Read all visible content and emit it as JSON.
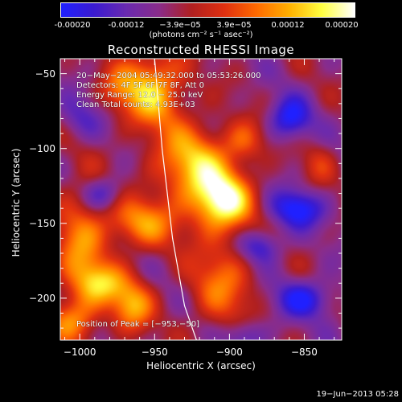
{
  "colorbar": {
    "ticks": [
      "-0.00020",
      "-0.00012",
      "−3.9e−05",
      "3.9e−05",
      "0.00012",
      "0.00020"
    ],
    "units": "(photons cm⁻² s⁻¹ asec⁻²)",
    "colors": [
      "#2020ff",
      "#3b1bd0",
      "#6a2ab0",
      "#8a2c8a",
      "#b02020",
      "#e03010",
      "#ff6a00",
      "#ffb000",
      "#ffff40",
      "#ffffff"
    ]
  },
  "annotations": {
    "line1": "20−May−2004 05:49:32.000 to 05:53:26.000",
    "line2": "Detectors: 4F 5F 6F 7F 8F, Att 0",
    "line3": "Energy Range: 12.0 − 25.0 keV",
    "line4": "Clean     Total counts: 4.93E+03",
    "peak": "Position of Peak = [−953,−50]"
  },
  "footer": "19−Jun−2013 05:28",
  "chart_data": {
    "type": "heatmap",
    "title": "Reconstructed RHESSI Image",
    "xlabel": "Heliocentric X (arcsec)",
    "ylabel": "Heliocentric Y (arcsec)",
    "xlim": [
      -1013,
      -825
    ],
    "ylim": [
      -228,
      -40
    ],
    "xticks": [
      -1000,
      -950,
      -900,
      -850
    ],
    "yticks": [
      -200,
      -150,
      -100,
      -50
    ],
    "xtick_labels": [
      "−1000",
      "−950",
      "−900",
      "−850"
    ],
    "ytick_labels": [
      "−200",
      "−150",
      "−100",
      "−50"
    ],
    "zlim": [
      -0.0002,
      0.0002
    ],
    "peak": [
      -953,
      -50
    ],
    "limb": [
      [
        -950,
        -40
      ],
      [
        -945,
        -100
      ],
      [
        -938,
        -160
      ],
      [
        -930,
        -205
      ],
      [
        -922,
        -228
      ]
    ],
    "sources": [
      {
        "x": -952,
        "y": -60,
        "sx": 15,
        "sy": 18,
        "a": 0.00016
      },
      {
        "x": -925,
        "y": -110,
        "sx": 18,
        "sy": 18,
        "a": 0.00015
      },
      {
        "x": -905,
        "y": -135,
        "sx": 14,
        "sy": 14,
        "a": 0.0002
      },
      {
        "x": -960,
        "y": -150,
        "sx": 18,
        "sy": 12,
        "a": 0.00012
      },
      {
        "x": -1000,
        "y": -165,
        "sx": 12,
        "sy": 30,
        "a": 0.00011
      },
      {
        "x": -985,
        "y": -190,
        "sx": 12,
        "sy": 10,
        "a": 0.00012
      },
      {
        "x": -965,
        "y": -205,
        "sx": 10,
        "sy": 12,
        "a": 0.00013
      },
      {
        "x": -1005,
        "y": -215,
        "sx": 12,
        "sy": 10,
        "a": 0.0001
      },
      {
        "x": -905,
        "y": -190,
        "sx": 15,
        "sy": 22,
        "a": 0.0001
      },
      {
        "x": -890,
        "y": -95,
        "sx": 10,
        "sy": 10,
        "a": 8e-05
      },
      {
        "x": -860,
        "y": -80,
        "sx": 10,
        "sy": 10,
        "a": -0.00012
      },
      {
        "x": -855,
        "y": -140,
        "sx": 12,
        "sy": 9,
        "a": -0.00013
      },
      {
        "x": -850,
        "y": -200,
        "sx": 14,
        "sy": 9,
        "a": -0.00011
      },
      {
        "x": -880,
        "y": -165,
        "sx": 10,
        "sy": 8,
        "a": -0.0001
      },
      {
        "x": -1000,
        "y": -80,
        "sx": 10,
        "sy": 10,
        "a": -6e-05
      },
      {
        "x": -985,
        "y": -130,
        "sx": 10,
        "sy": 8,
        "a": -9e-05
      },
      {
        "x": -890,
        "y": -225,
        "sx": 10,
        "sy": 8,
        "a": -8e-05
      },
      {
        "x": -975,
        "y": -60,
        "sx": 9,
        "sy": 10,
        "a": 6e-05
      },
      {
        "x": -840,
        "y": -110,
        "sx": 8,
        "sy": 10,
        "a": 5e-05
      }
    ]
  }
}
